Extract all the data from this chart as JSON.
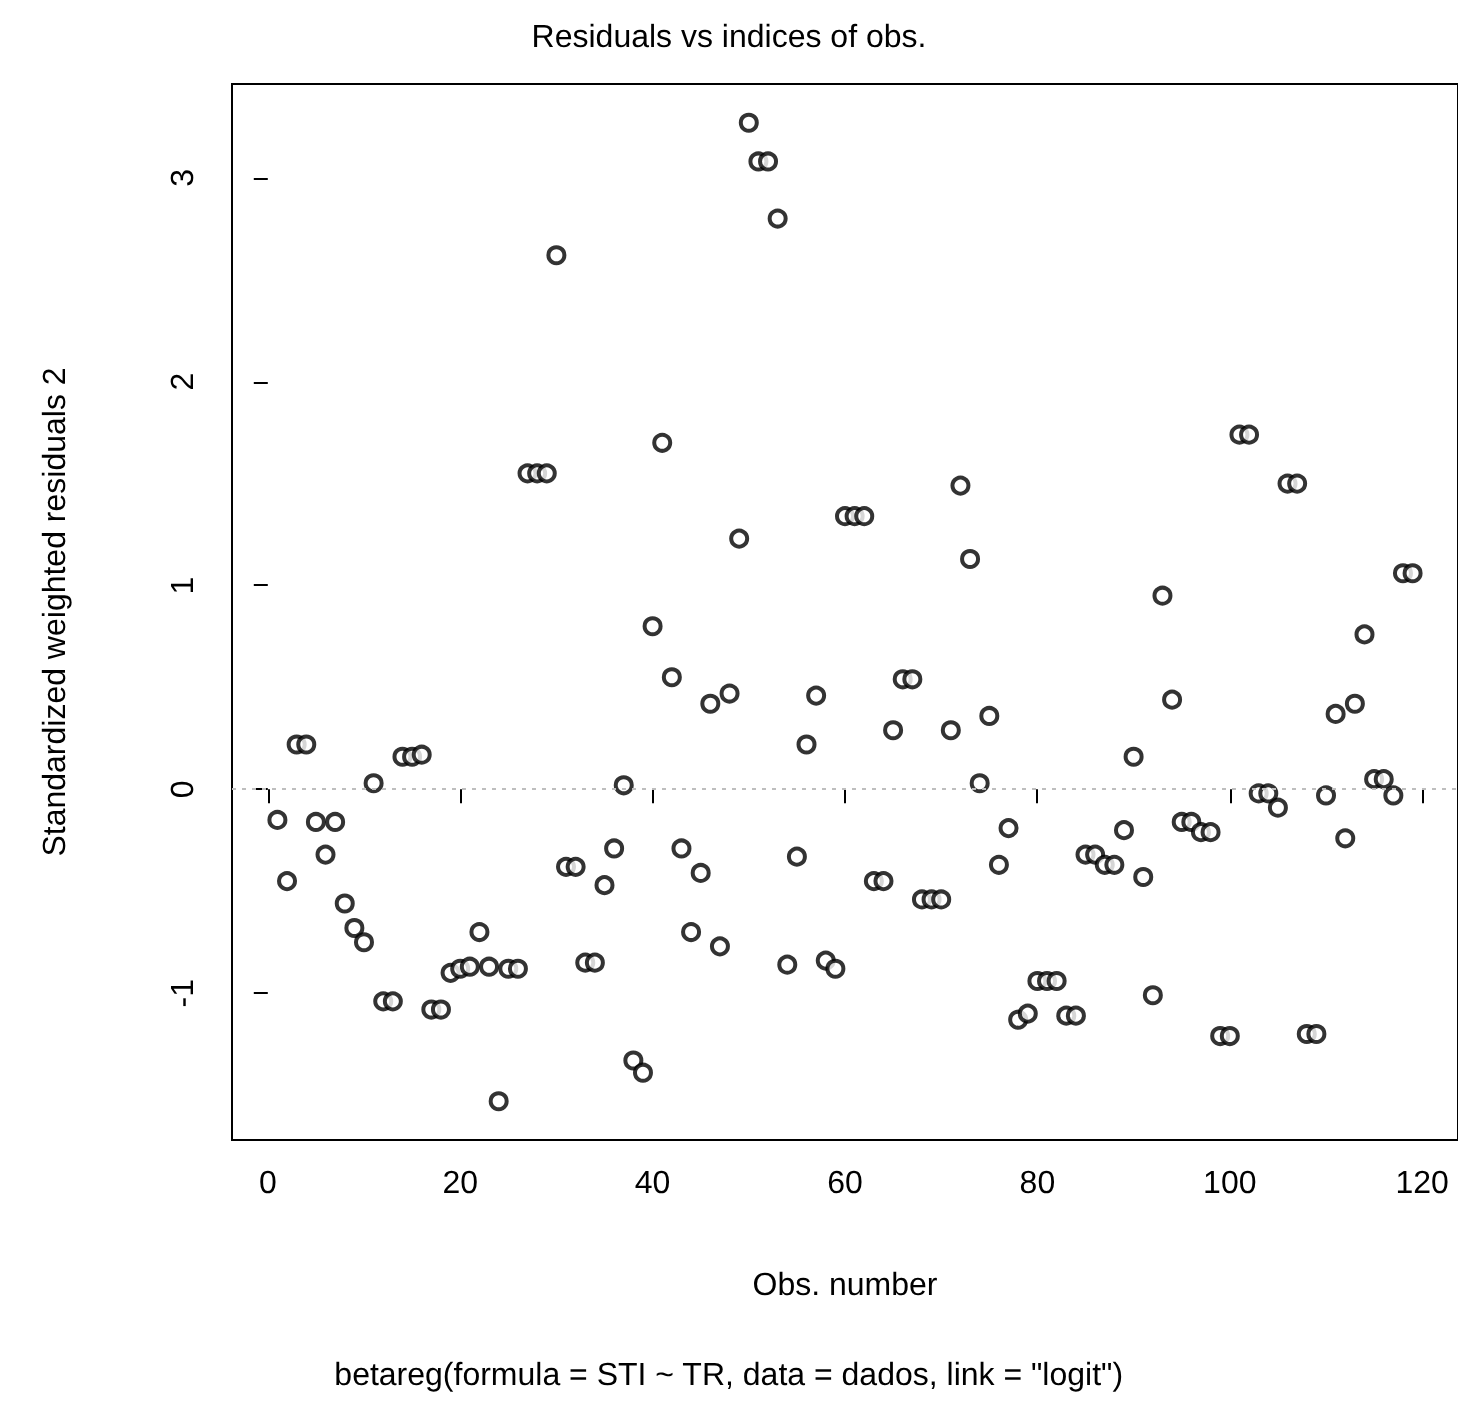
{
  "chart_data": {
    "type": "scatter",
    "title": "Residuals vs indices of obs.",
    "xlabel": "Obs. number",
    "ylabel": "Standardized weighted residuals 2",
    "annotations": [
      "betareg(formula = STI ~ TR, data = dados, link = \"logit\")"
    ],
    "x": [
      1,
      2,
      3,
      4,
      5,
      6,
      7,
      8,
      9,
      10,
      11,
      12,
      13,
      14,
      15,
      16,
      17,
      18,
      19,
      20,
      21,
      22,
      23,
      24,
      25,
      26,
      27,
      28,
      29,
      30,
      31,
      32,
      33,
      34,
      35,
      36,
      37,
      38,
      39,
      40,
      41,
      42,
      43,
      44,
      45,
      46,
      47,
      48,
      49,
      50,
      51,
      52,
      53,
      54,
      55,
      56,
      57,
      58,
      59,
      60,
      61,
      62,
      63,
      64,
      65,
      66,
      67,
      68,
      69,
      70,
      71,
      72,
      73,
      74,
      75,
      76,
      77,
      78,
      79,
      80,
      81,
      82,
      83,
      84,
      85,
      86,
      87,
      88,
      89,
      90,
      91,
      92,
      93,
      94,
      95,
      96,
      97,
      98,
      99,
      100,
      101,
      102,
      103,
      104,
      105,
      106,
      107,
      108,
      109,
      110,
      111,
      112,
      113,
      114,
      115,
      116,
      117,
      118,
      119
    ],
    "values": [
      -0.15,
      -0.45,
      0.22,
      0.22,
      -0.16,
      -0.32,
      -0.16,
      -0.56,
      -0.68,
      -0.75,
      0.03,
      -1.04,
      -1.04,
      0.16,
      0.16,
      0.17,
      -1.08,
      -1.08,
      -0.9,
      -0.88,
      -0.87,
      -0.7,
      -0.87,
      -1.53,
      -0.88,
      -0.88,
      1.55,
      1.55,
      1.55,
      2.62,
      -0.38,
      -0.38,
      -0.85,
      -0.85,
      -0.47,
      -0.29,
      0.02,
      -1.33,
      -1.39,
      0.8,
      1.7,
      0.55,
      -0.29,
      -0.7,
      -0.41,
      0.42,
      -0.77,
      0.47,
      1.23,
      3.27,
      3.08,
      3.08,
      2.8,
      -0.86,
      -0.33,
      0.22,
      0.46,
      -0.84,
      -0.88,
      1.34,
      1.34,
      1.34,
      -0.45,
      -0.45,
      0.29,
      0.54,
      0.54,
      -0.54,
      -0.54,
      -0.54,
      0.29,
      1.49,
      1.13,
      0.03,
      0.36,
      -0.37,
      -0.19,
      -1.13,
      -1.1,
      -0.94,
      -0.94,
      -0.94,
      -1.11,
      -1.11,
      -0.32,
      -0.32,
      -0.37,
      -0.37,
      -0.2,
      0.16,
      -0.43,
      -1.01,
      0.95,
      0.44,
      -0.16,
      -0.16,
      -0.21,
      -0.21,
      -1.21,
      -1.21,
      1.74,
      1.74,
      -0.02,
      -0.02,
      -0.09,
      1.5,
      1.5,
      -1.2,
      -1.2,
      -0.03,
      0.37,
      -0.24,
      0.42,
      0.76,
      0.05,
      0.05,
      -0.03,
      1.06,
      1.06
    ],
    "color": "#000000",
    "marker": "circle",
    "xlim": [
      -3.72,
      123.72
    ],
    "xticks": [
      0,
      20,
      40,
      60,
      80,
      100,
      120
    ],
    "ylim": [
      -1.72,
      3.46
    ],
    "yticks": [
      -1,
      0,
      1,
      2,
      3
    ],
    "ref_lines": [
      {
        "axis": "y",
        "value": 0,
        "color": "#bebebe",
        "line_style": "dotted"
      }
    ],
    "grid": false
  }
}
